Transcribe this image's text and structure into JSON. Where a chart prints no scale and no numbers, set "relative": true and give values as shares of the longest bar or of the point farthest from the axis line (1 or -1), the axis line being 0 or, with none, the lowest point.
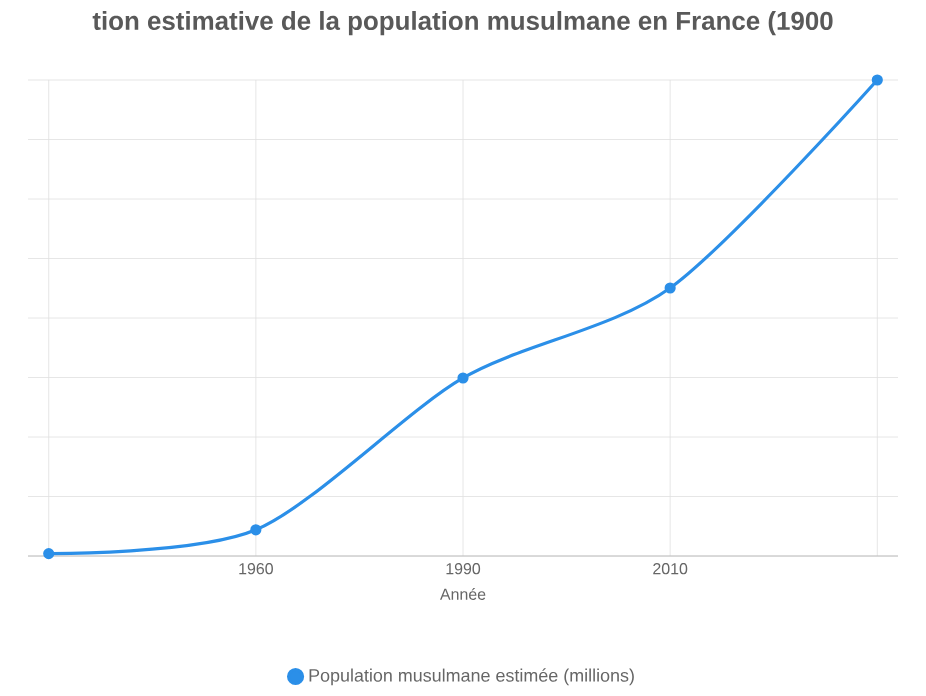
{
  "chart_data": {
    "type": "line",
    "title": "tion estimative de la population musulmane en France (1900",
    "xlabel": "Année",
    "categories": [
      null,
      "1960",
      "1990",
      "2010",
      null
    ],
    "relative": true,
    "series": [
      {
        "name": "Population musulmane estimée (millions)",
        "color": "#2b8fe8",
        "values": [
          0.005,
          0.055,
          0.374,
          0.563,
          1
        ]
      }
    ],
    "grid": true,
    "legend": "bottom",
    "marker": "circle",
    "line_style": "solid"
  }
}
